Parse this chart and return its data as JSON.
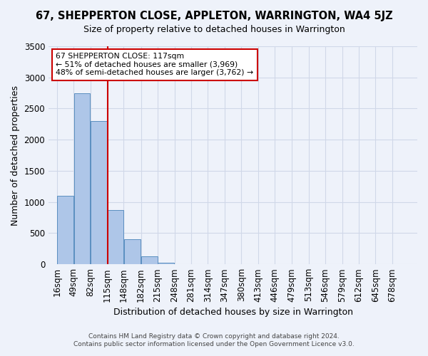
{
  "title": "67, SHEPPERTON CLOSE, APPLETON, WARRINGTON, WA4 5JZ",
  "subtitle": "Size of property relative to detached houses in Warrington",
  "xlabel": "Distribution of detached houses by size in Warrington",
  "ylabel": "Number of detached properties",
  "bin_labels": [
    "16sqm",
    "49sqm",
    "82sqm",
    "115sqm",
    "148sqm",
    "182sqm",
    "215sqm",
    "248sqm",
    "281sqm",
    "314sqm",
    "347sqm",
    "380sqm",
    "413sqm",
    "446sqm",
    "479sqm",
    "513sqm",
    "546sqm",
    "579sqm",
    "612sqm",
    "645sqm",
    "678sqm"
  ],
  "bin_edges": [
    16,
    49,
    82,
    115,
    148,
    182,
    215,
    248,
    281,
    314,
    347,
    380,
    413,
    446,
    479,
    513,
    546,
    579,
    612,
    645,
    678
  ],
  "bar_heights": [
    1100,
    2750,
    2300,
    875,
    400,
    125,
    30,
    5,
    2,
    1,
    1,
    0,
    0,
    0,
    0,
    0,
    0,
    0,
    0,
    0
  ],
  "bar_color": "#aec6e8",
  "bar_edge_color": "#5a8fc0",
  "grid_color": "#d0d8e8",
  "background_color": "#eef2fa",
  "property_size": 117,
  "annotation_title": "67 SHEPPERTON CLOSE: 117sqm",
  "annotation_line1": "← 51% of detached houses are smaller (3,969)",
  "annotation_line2": "48% of semi-detached houses are larger (3,762) →",
  "vline_color": "#cc0000",
  "annotation_box_color": "#cc0000",
  "ylim": [
    0,
    3500
  ],
  "footnote1": "Contains HM Land Registry data © Crown copyright and database right 2024.",
  "footnote2": "Contains public sector information licensed under the Open Government Licence v3.0."
}
